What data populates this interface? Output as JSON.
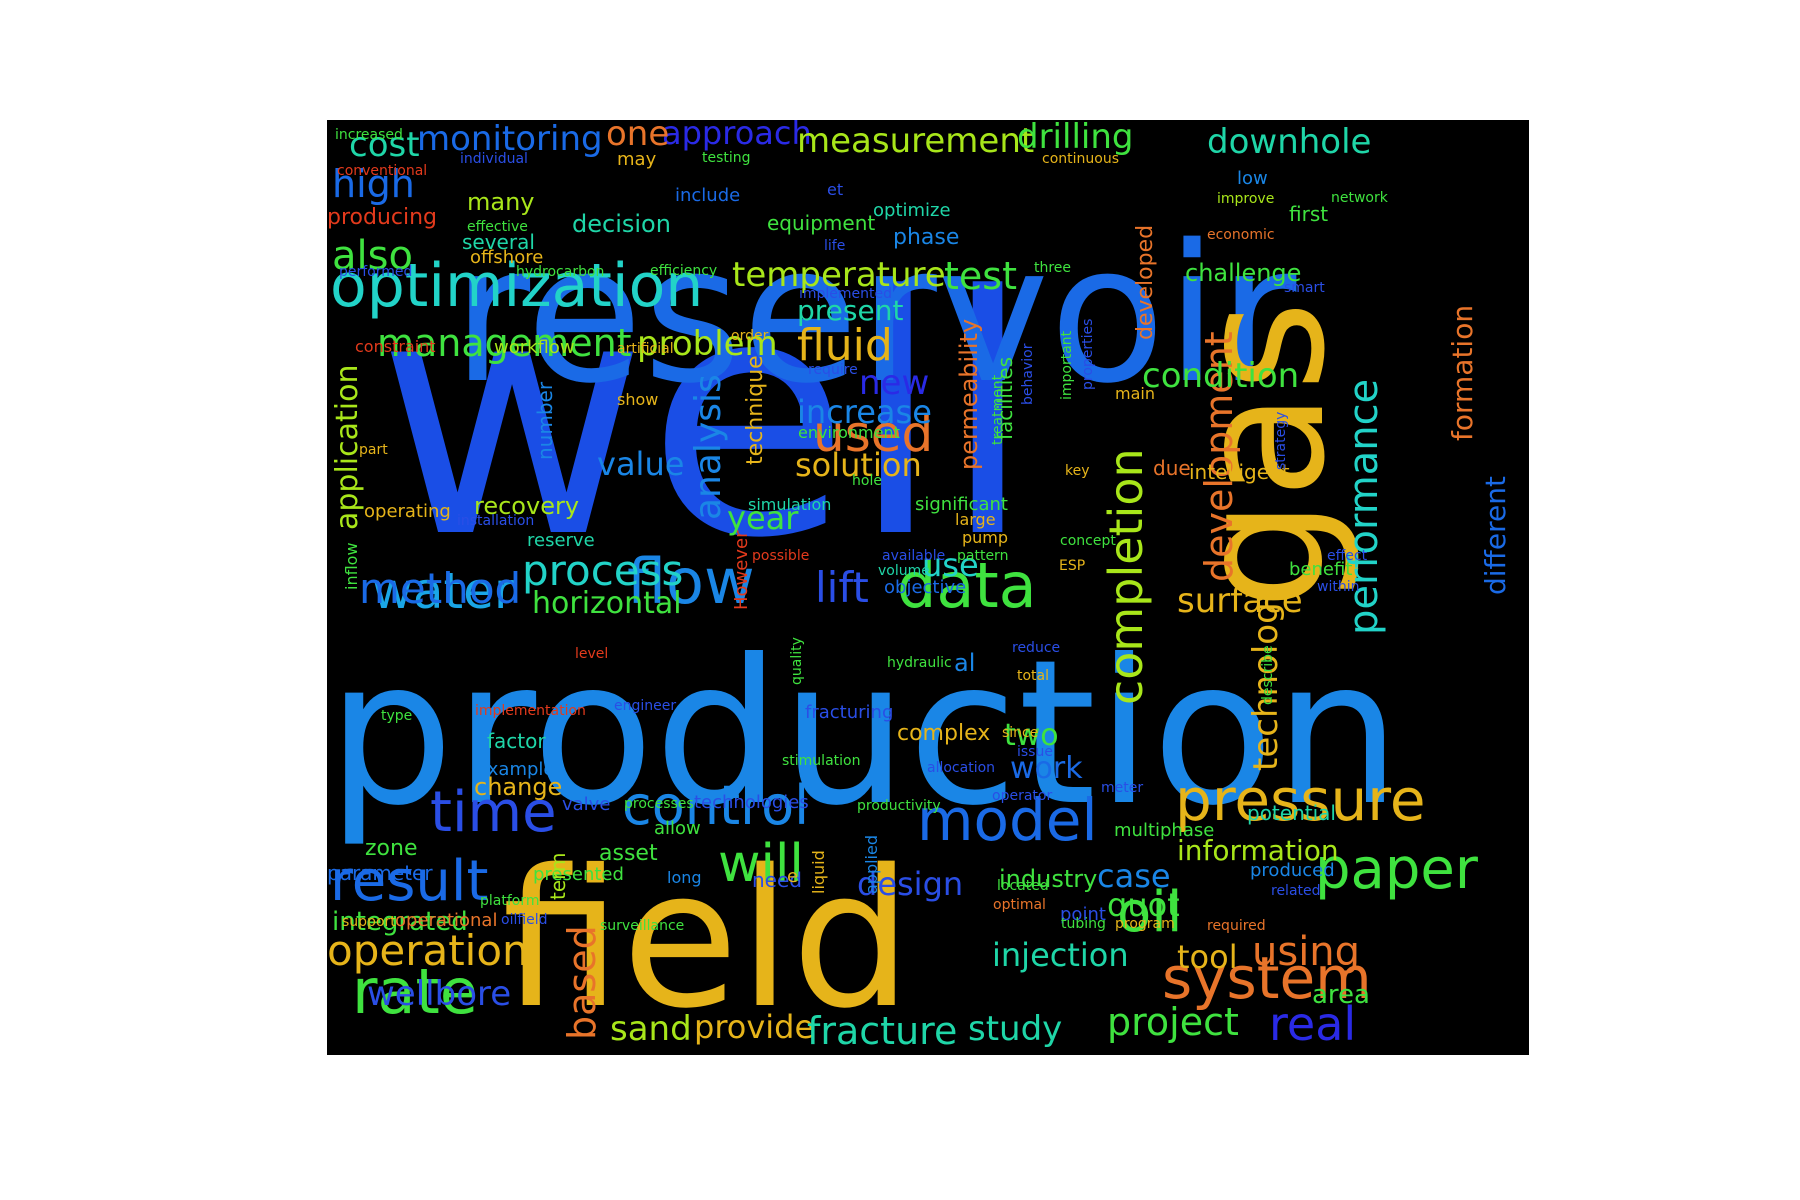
{
  "background": "#000000",
  "palette": {
    "blue": "#1a4ee6",
    "sky": "#1a86e6",
    "cyan": "#22d3c8",
    "teal": "#1fd6a8",
    "green": "#3fe23f",
    "lime": "#a8e61a",
    "yellow": "#e6b41a",
    "orange": "#e8742a",
    "red": "#e33a1c",
    "indigo": "#2a2ae6"
  },
  "words": [
    {
      "text": "well",
      "color": "#1a4ee6"
    },
    {
      "text": "production",
      "color": "#1a86e6"
    },
    {
      "text": "reservoir",
      "color": "#1a6ae6"
    },
    {
      "text": "field",
      "color": "#e6b41a"
    },
    {
      "text": "gas",
      "color": "#e6b41a"
    },
    {
      "text": "optimization",
      "color": "#22d3c8"
    },
    {
      "text": "data",
      "color": "#3fe23f"
    },
    {
      "text": "flow",
      "color": "#1a86e6"
    },
    {
      "text": "water",
      "color": "#1aa6e6"
    },
    {
      "text": "pressure",
      "color": "#e6b41a"
    },
    {
      "text": "system",
      "color": "#e8742a"
    },
    {
      "text": "rate",
      "color": "#3fe23f"
    },
    {
      "text": "time",
      "color": "#2a4ee6"
    },
    {
      "text": "control",
      "color": "#1a86e6"
    },
    {
      "text": "model",
      "color": "#1a6ae6"
    },
    {
      "text": "result",
      "color": "#1a6ae6"
    },
    {
      "text": "paper",
      "color": "#3fe23f"
    },
    {
      "text": "oil",
      "color": "#3fe23f"
    },
    {
      "text": "will",
      "color": "#3fe23f"
    },
    {
      "text": "completion",
      "color": "#a8e61a"
    },
    {
      "text": "development",
      "color": "#e8742a"
    },
    {
      "text": "technology",
      "color": "#e6b41a"
    },
    {
      "text": "performance",
      "color": "#22d3c8"
    },
    {
      "text": "formation",
      "color": "#e8742a"
    },
    {
      "text": "different",
      "color": "#1a6ae6"
    },
    {
      "text": "management",
      "color": "#3fe23f"
    },
    {
      "text": "problem",
      "color": "#a8e61a"
    },
    {
      "text": "monitoring",
      "color": "#1a6ae6"
    },
    {
      "text": "approach",
      "color": "#2a2ae6"
    },
    {
      "text": "measurement",
      "color": "#a8e61a"
    },
    {
      "text": "drilling",
      "color": "#3fe23f"
    },
    {
      "text": "downhole",
      "color": "#1fd6a8"
    },
    {
      "text": "cost",
      "color": "#1fd6a8"
    },
    {
      "text": "one",
      "color": "#e8742a"
    },
    {
      "text": "high",
      "color": "#1a6ae6"
    },
    {
      "text": "also",
      "color": "#3fe23f"
    },
    {
      "text": "temperature",
      "color": "#a8e61a"
    },
    {
      "text": "test",
      "color": "#3fe23f"
    },
    {
      "text": "fluid",
      "color": "#e6b41a"
    },
    {
      "text": "new",
      "color": "#2a2ae6"
    },
    {
      "text": "used",
      "color": "#e8742a"
    },
    {
      "text": "increase",
      "color": "#1a86e6"
    },
    {
      "text": "analysis",
      "color": "#1a86e6"
    },
    {
      "text": "solution",
      "color": "#e6b41a"
    },
    {
      "text": "value",
      "color": "#1a86e6"
    },
    {
      "text": "process",
      "color": "#22d3c8"
    },
    {
      "text": "horizontal",
      "color": "#3fe23f"
    },
    {
      "text": "method",
      "color": "#1a6ae6"
    },
    {
      "text": "lift",
      "color": "#2a4ee6"
    },
    {
      "text": "year",
      "color": "#3fe23f"
    },
    {
      "text": "use",
      "color": "#22d3c8"
    },
    {
      "text": "surface",
      "color": "#e6b41a"
    },
    {
      "text": "application",
      "color": "#a8e61a"
    },
    {
      "text": "condition",
      "color": "#3fe23f"
    },
    {
      "text": "challenge",
      "color": "#3fe23f"
    },
    {
      "text": "present",
      "color": "#1fd6a8"
    },
    {
      "text": "technique",
      "color": "#e6b41a"
    },
    {
      "text": "permeability",
      "color": "#e8742a"
    },
    {
      "text": "facilities",
      "color": "#3fe23f"
    },
    {
      "text": "developed",
      "color": "#e8742a"
    },
    {
      "text": "recovery",
      "color": "#a8e61a"
    },
    {
      "text": "number",
      "color": "#1a86e6"
    },
    {
      "text": "operation",
      "color": "#e6b41a"
    },
    {
      "text": "wellbore",
      "color": "#2a4ee6"
    },
    {
      "text": "integrated",
      "color": "#3fe23f"
    },
    {
      "text": "based",
      "color": "#e8742a"
    },
    {
      "text": "sand",
      "color": "#a8e61a"
    },
    {
      "text": "provide",
      "color": "#e6b41a"
    },
    {
      "text": "fracture",
      "color": "#1fd6a8"
    },
    {
      "text": "study",
      "color": "#1fd6a8"
    },
    {
      "text": "project",
      "color": "#3fe23f"
    },
    {
      "text": "real",
      "color": "#2a2ae6"
    },
    {
      "text": "using",
      "color": "#e8742a"
    },
    {
      "text": "area",
      "color": "#3fe23f"
    },
    {
      "text": "tool",
      "color": "#e6b41a"
    },
    {
      "text": "injection",
      "color": "#1fd6a8"
    },
    {
      "text": "quot",
      "color": "#3fe23f"
    },
    {
      "text": "case",
      "color": "#1a86e6"
    },
    {
      "text": "information",
      "color": "#a8e61a"
    },
    {
      "text": "industry",
      "color": "#3fe23f"
    },
    {
      "text": "design",
      "color": "#2a4ee6"
    },
    {
      "text": "work",
      "color": "#1a6ae6"
    },
    {
      "text": "two",
      "color": "#3fe23f"
    },
    {
      "text": "complex",
      "color": "#e6b41a"
    },
    {
      "text": "asset",
      "color": "#3fe23f"
    },
    {
      "text": "zone",
      "color": "#3fe23f"
    },
    {
      "text": "change",
      "color": "#e6b41a"
    },
    {
      "text": "factor",
      "color": "#1fd6a8"
    },
    {
      "text": "example",
      "color": "#1a86e6"
    },
    {
      "text": "parameter",
      "color": "#1a6ae6"
    },
    {
      "text": "presented",
      "color": "#3fe23f"
    },
    {
      "text": "many",
      "color": "#a8e61a"
    },
    {
      "text": "decision",
      "color": "#1fd6a8"
    },
    {
      "text": "equipment",
      "color": "#3fe23f"
    },
    {
      "text": "optimize",
      "color": "#1fd6a8"
    },
    {
      "text": "phase",
      "color": "#1a86e6"
    },
    {
      "text": "producing",
      "color": "#e33a1c"
    },
    {
      "text": "several",
      "color": "#1fd6a8"
    },
    {
      "text": "offshore",
      "color": "#e6b41a"
    },
    {
      "text": "workflow",
      "color": "#a8e61a"
    },
    {
      "text": "constraint",
      "color": "#e33a1c"
    },
    {
      "text": "operating",
      "color": "#e6b41a"
    },
    {
      "text": "reserve",
      "color": "#1fd6a8"
    },
    {
      "text": "inflow",
      "color": "#3fe23f"
    },
    {
      "text": "installation",
      "color": "#2a4ee6"
    },
    {
      "text": "simulation",
      "color": "#1fd6a8"
    },
    {
      "text": "significant",
      "color": "#3fe23f"
    },
    {
      "text": "large",
      "color": "#e6b41a"
    },
    {
      "text": "pump",
      "color": "#e6b41a"
    },
    {
      "text": "pattern",
      "color": "#3fe23f"
    },
    {
      "text": "However",
      "color": "#e33a1c"
    },
    {
      "text": "objective",
      "color": "#1a6ae6"
    },
    {
      "text": "volume",
      "color": "#1fd6a8"
    },
    {
      "text": "available",
      "color": "#2a4ee6"
    },
    {
      "text": "benefit",
      "color": "#3fe23f"
    },
    {
      "text": "intelligent",
      "color": "#e6b41a"
    },
    {
      "text": "due",
      "color": "#e8742a"
    },
    {
      "text": "key",
      "color": "#e6b41a"
    },
    {
      "text": "main",
      "color": "#e6b41a"
    },
    {
      "text": "first",
      "color": "#3fe23f"
    },
    {
      "text": "low",
      "color": "#1a86e6"
    },
    {
      "text": "improve",
      "color": "#a8e61a"
    },
    {
      "text": "network",
      "color": "#3fe23f"
    },
    {
      "text": "economic",
      "color": "#e8742a"
    },
    {
      "text": "increased",
      "color": "#3fe23f"
    },
    {
      "text": "individual",
      "color": "#2a4ee6"
    },
    {
      "text": "conventional",
      "color": "#e33a1c"
    },
    {
      "text": "may",
      "color": "#e6b41a"
    },
    {
      "text": "testing",
      "color": "#3fe23f"
    },
    {
      "text": "continuous",
      "color": "#e6b41a"
    },
    {
      "text": "include",
      "color": "#1a6ae6"
    },
    {
      "text": "et",
      "color": "#2a4ee6"
    },
    {
      "text": "effective",
      "color": "#3fe23f"
    },
    {
      "text": "hydrocarbon",
      "color": "#3fe23f"
    },
    {
      "text": "efficiency",
      "color": "#3fe23f"
    },
    {
      "text": "performed",
      "color": "#2a4ee6"
    },
    {
      "text": "implemented",
      "color": "#2a4ee6"
    },
    {
      "text": "three",
      "color": "#3fe23f"
    },
    {
      "text": "smart",
      "color": "#2a4ee6"
    },
    {
      "text": "life",
      "color": "#2a4ee6"
    },
    {
      "text": "artificial",
      "color": "#e6b41a"
    },
    {
      "text": "order",
      "color": "#e6b41a"
    },
    {
      "text": "require",
      "color": "#2a4ee6"
    },
    {
      "text": "show",
      "color": "#e6b41a"
    },
    {
      "text": "environment",
      "color": "#3fe23f"
    },
    {
      "text": "treatment",
      "color": "#3fe23f"
    },
    {
      "text": "behavior",
      "color": "#2a4ee6"
    },
    {
      "text": "important",
      "color": "#3fe23f"
    },
    {
      "text": "properties",
      "color": "#2a4ee6"
    },
    {
      "text": "strategy",
      "color": "#2a4ee6"
    },
    {
      "text": "hole",
      "color": "#3fe23f"
    },
    {
      "text": "part",
      "color": "#e6b41a"
    },
    {
      "text": "concept",
      "color": "#3fe23f"
    },
    {
      "text": "ESP",
      "color": "#e6b41a"
    },
    {
      "text": "effect",
      "color": "#2a4ee6"
    },
    {
      "text": "within",
      "color": "#2a4ee6"
    },
    {
      "text": "possible",
      "color": "#e33a1c"
    },
    {
      "text": "hydraulic",
      "color": "#3fe23f"
    },
    {
      "text": "al",
      "color": "#1a86e6"
    },
    {
      "text": "reduce",
      "color": "#2a4ee6"
    },
    {
      "text": "total",
      "color": "#e6b41a"
    },
    {
      "text": "level",
      "color": "#e33a1c"
    },
    {
      "text": "quality",
      "color": "#3fe23f"
    },
    {
      "text": "describe",
      "color": "#3fe23f"
    },
    {
      "text": "engineer",
      "color": "#2a4ee6"
    },
    {
      "text": "implementation",
      "color": "#e33a1c"
    },
    {
      "text": "type",
      "color": "#3fe23f"
    },
    {
      "text": "fracturing",
      "color": "#2a4ee6"
    },
    {
      "text": "since",
      "color": "#e6b41a"
    },
    {
      "text": "issue",
      "color": "#2a4ee6"
    },
    {
      "text": "stimulation",
      "color": "#3fe23f"
    },
    {
      "text": "allocation",
      "color": "#2a4ee6"
    },
    {
      "text": "operator",
      "color": "#2a4ee6"
    },
    {
      "text": "meter",
      "color": "#2a4ee6"
    },
    {
      "text": "valve",
      "color": "#2a4ee6"
    },
    {
      "text": "processes",
      "color": "#3fe23f"
    },
    {
      "text": "technologies",
      "color": "#2a4ee6"
    },
    {
      "text": "productivity",
      "color": "#3fe23f"
    },
    {
      "text": "potential",
      "color": "#1fd6a8"
    },
    {
      "text": "multiphase",
      "color": "#3fe23f"
    },
    {
      "text": "allow",
      "color": "#3fe23f"
    },
    {
      "text": "applied",
      "color": "#1a86e6"
    },
    {
      "text": "liquid",
      "color": "#e6b41a"
    },
    {
      "text": "term",
      "color": "#a8e61a"
    },
    {
      "text": "long",
      "color": "#1a86e6"
    },
    {
      "text": "need",
      "color": "#2a4ee6"
    },
    {
      "text": "located",
      "color": "#3fe23f"
    },
    {
      "text": "e",
      "color": "#e6b41a"
    },
    {
      "text": "optimal",
      "color": "#e8742a"
    },
    {
      "text": "produced",
      "color": "#1a86e6"
    },
    {
      "text": "related",
      "color": "#2a4ee6"
    },
    {
      "text": "platform",
      "color": "#3fe23f"
    },
    {
      "text": "support",
      "color": "#e6b41a"
    },
    {
      "text": "operational",
      "color": "#e8742a"
    },
    {
      "text": "oilfield",
      "color": "#2a4ee6"
    },
    {
      "text": "surveillance",
      "color": "#3fe23f"
    },
    {
      "text": "point",
      "color": "#2a4ee6"
    },
    {
      "text": "tubing",
      "color": "#3fe23f"
    },
    {
      "text": "program",
      "color": "#e6b41a"
    },
    {
      "text": "required",
      "color": "#e8742a"
    }
  ]
}
